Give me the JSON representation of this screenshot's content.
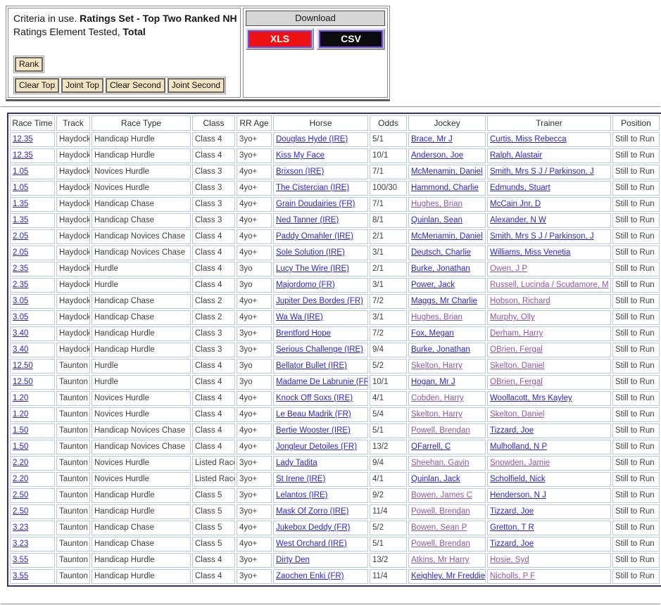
{
  "criteria_panel": {
    "line1_prefix": "Criteria in use. ",
    "ratings_set": "Ratings Set - Top Two Ranked NH",
    "line2_prefix": "Ratings Element Tested, ",
    "ratings_element": "Total",
    "rank_button_label": "Rank",
    "selection_buttons": [
      "Clear Top",
      "Joint Top",
      "Clear Second",
      "Joint Second"
    ]
  },
  "download_panel": {
    "title": "Download",
    "xls_label": "XLS",
    "csv_label": "CSV"
  },
  "colors": {
    "link_blue": "#2a24cf",
    "link_visited": "#8d58a6",
    "xls_bg": "#ee1111",
    "csv_bg": "#0b0b0e",
    "btn_purple": "#6f4bd8",
    "beige": "#f3e4c2",
    "table_border": "#34345e",
    "cell_border": "#b4c8de"
  },
  "table": {
    "headers": [
      "Race Time",
      "Track",
      "Race Type",
      "Class",
      "RR Age",
      "Horse",
      "Odds",
      "Jockey",
      "Trainer",
      "Position"
    ],
    "row_fields": [
      "time",
      "track",
      "race_type",
      "class",
      "rr_age",
      "horse",
      "odds",
      "jockey",
      "jockey_visited",
      "trainer",
      "trainer_visited",
      "position"
    ],
    "rows": [
      [
        "12.35",
        "Haydock",
        "Handicap Hurdle",
        "Class 4",
        "3yo+",
        "Douglas Hyde (IRE)",
        "5/1",
        "Brace, Mr J",
        false,
        "Curtis, Miss Rebecca",
        false,
        "Still to Run"
      ],
      [
        "12.35",
        "Haydock",
        "Handicap Hurdle",
        "Class 4",
        "3yo+",
        "Kiss My Face",
        "10/1",
        "Anderson, Joe",
        false,
        "Ralph, Alastair",
        false,
        "Still to Run"
      ],
      [
        "1.05",
        "Haydock",
        "Novices Hurdle",
        "Class 3",
        "4yo+",
        "Brixson (IRE)",
        "7/1",
        "McMenamin, Daniel",
        false,
        "Smith, Mrs S J / Parkinson, J",
        false,
        "Still to Run"
      ],
      [
        "1.05",
        "Haydock",
        "Novices Hurdle",
        "Class 3",
        "4yo+",
        "The Cistercian (IRE)",
        "100/30",
        "Hammond, Charlie",
        false,
        "Edmunds, Stuart",
        false,
        "Still to Run"
      ],
      [
        "1.35",
        "Haydock",
        "Handicap Chase",
        "Class 3",
        "4yo+",
        "Grain Doudairies (FR)",
        "7/1",
        "Hughes, Brian",
        true,
        "McCain Jnr, D",
        false,
        "Still to Run"
      ],
      [
        "1.35",
        "Haydock",
        "Handicap Chase",
        "Class 3",
        "4yo+",
        "Ned Tanner (IRE)",
        "8/1",
        "Quinlan, Sean",
        false,
        "Alexander, N W",
        false,
        "Still to Run"
      ],
      [
        "2.05",
        "Haydock",
        "Handicap Novices Chase",
        "Class 4",
        "4yo+",
        "Paddy Omahler (IRE)",
        "2/1",
        "McMenamin, Daniel",
        false,
        "Smith, Mrs S J / Parkinson, J",
        false,
        "Still to Run"
      ],
      [
        "2.05",
        "Haydock",
        "Handicap Novices Chase",
        "Class 4",
        "4yo+",
        "Sole Solution (IRE)",
        "3/1",
        "Deutsch, Charlie",
        false,
        "Williams, Miss Venetia",
        false,
        "Still to Run"
      ],
      [
        "2.35",
        "Haydock",
        "Hurdle",
        "Class 4",
        "3yo",
        "Lucy The Wire (IRE)",
        "2/1",
        "Burke, Jonathan",
        false,
        "Owen, J P",
        true,
        "Still to Run"
      ],
      [
        "2.35",
        "Haydock",
        "Hurdle",
        "Class 4",
        "3yo",
        "Majordomo (FR)",
        "3/1",
        "Power, Jack",
        false,
        "Russell, Lucinda / Scudamore, M",
        true,
        "Still to Run"
      ],
      [
        "3.05",
        "Haydock",
        "Handicap Chase",
        "Class 2",
        "4yo+",
        "Jupiter Des Bordes (FR)",
        "7/2",
        "Maggs, Mr Charlie",
        false,
        "Hobson, Richard",
        true,
        "Still to Run"
      ],
      [
        "3.05",
        "Haydock",
        "Handicap Chase",
        "Class 2",
        "4yo+",
        "Wa Wa (IRE)",
        "3/1",
        "Hughes, Brian",
        true,
        "Murphy, Olly",
        true,
        "Still to Run"
      ],
      [
        "3.40",
        "Haydock",
        "Handicap Hurdle",
        "Class 3",
        "3yo+",
        "Brentford Hope",
        "7/2",
        "Fox, Megan",
        false,
        "Derham, Harry",
        true,
        "Still to Run"
      ],
      [
        "3.40",
        "Haydock",
        "Handicap Hurdle",
        "Class 3",
        "3yo+",
        "Serious Challenge (IRE)",
        "9/4",
        "Burke, Jonathan",
        false,
        "OBrien, Fergal",
        true,
        "Still to Run"
      ],
      [
        "12.50",
        "Taunton",
        "Hurdle",
        "Class 4",
        "3yo",
        "Bellator Bullet (IRE)",
        "5/2",
        "Skelton, Harry",
        true,
        "Skelton, Daniel",
        true,
        "Still to Run"
      ],
      [
        "12.50",
        "Taunton",
        "Hurdle",
        "Class 4",
        "3yo",
        "Madame De Labrunie (FR)",
        "10/1",
        "Hogan, Mr J",
        false,
        "OBrien, Fergal",
        true,
        "Still to Run"
      ],
      [
        "1.20",
        "Taunton",
        "Novices Hurdle",
        "Class 4",
        "4yo+",
        "Knock Off Soxs (IRE)",
        "4/1",
        "Cobden, Harry",
        true,
        "Woollacott, Mrs Kayley",
        false,
        "Still to Run"
      ],
      [
        "1.20",
        "Taunton",
        "Novices Hurdle",
        "Class 4",
        "4yo+",
        "Le Beau Madrik (FR)",
        "5/4",
        "Skelton, Harry",
        true,
        "Skelton, Daniel",
        true,
        "Still to Run"
      ],
      [
        "1.50",
        "Taunton",
        "Handicap Novices Chase",
        "Class 4",
        "4yo+",
        "Bertie Wooster (IRE)",
        "5/1",
        "Powell, Brendan",
        true,
        "Tizzard, Joe",
        false,
        "Still to Run"
      ],
      [
        "1.50",
        "Taunton",
        "Handicap Novices Chase",
        "Class 4",
        "4yo+",
        "Jongleur Detoiles (FR)",
        "13/2",
        "OFarrell, C",
        false,
        "Mulholland, N P",
        false,
        "Still to Run"
      ],
      [
        "2.20",
        "Taunton",
        "Novices Hurdle",
        "Listed Race",
        "3yo+",
        "Lady Tadita",
        "9/4",
        "Sheehan, Gavin",
        true,
        "Snowden, Jamie",
        true,
        "Still to Run"
      ],
      [
        "2.20",
        "Taunton",
        "Novices Hurdle",
        "Listed Race",
        "3yo+",
        "St Irene (IRE)",
        "4/1",
        "Quinlan, Jack",
        false,
        "Scholfield, Nick",
        false,
        "Still to Run"
      ],
      [
        "2.50",
        "Taunton",
        "Handicap Hurdle",
        "Class 5",
        "3yo+",
        "Lelantos (IRE)",
        "9/2",
        "Bowen, James C",
        true,
        "Henderson, N J",
        false,
        "Still to Run"
      ],
      [
        "2.50",
        "Taunton",
        "Handicap Hurdle",
        "Class 5",
        "3yo+",
        "Mask Of Zorro (IRE)",
        "11/4",
        "Powell, Brendan",
        true,
        "Tizzard, Joe",
        false,
        "Still to Run"
      ],
      [
        "3.23",
        "Taunton",
        "Handicap Chase",
        "Class 5",
        "4yo+",
        "Jukebox Deddy (FR)",
        "5/2",
        "Bowen, Sean P",
        true,
        "Gretton, T R",
        false,
        "Still to Run"
      ],
      [
        "3.23",
        "Taunton",
        "Handicap Chase",
        "Class 5",
        "4yo+",
        "West Orchard (IRE)",
        "5/1",
        "Powell, Brendan",
        true,
        "Tizzard, Joe",
        false,
        "Still to Run"
      ],
      [
        "3.55",
        "Taunton",
        "Handicap Hurdle",
        "Class 4",
        "3yo+",
        "Dirty Den",
        "13/2",
        "Atkins, Mr Harry",
        true,
        "Hosie, Syd",
        true,
        "Still to Run"
      ],
      [
        "3.55",
        "Taunton",
        "Handicap Hurdle",
        "Class 4",
        "3yo+",
        "Zaochen Enki (FR)",
        "11/4",
        "Keighley, Mr Freddie",
        false,
        "Nicholls, P F",
        true,
        "Still to Run"
      ]
    ]
  }
}
